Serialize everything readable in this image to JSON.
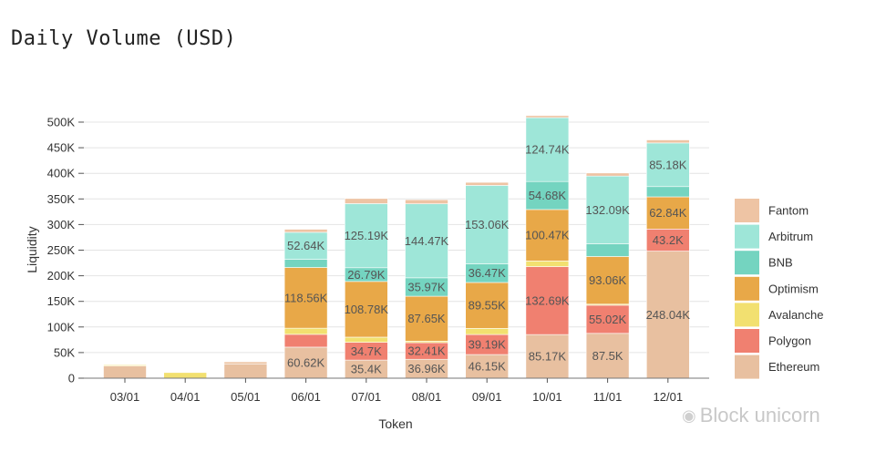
{
  "page": {
    "title": "Daily Volume (USD)"
  },
  "watermark": {
    "text": "Block unicorn"
  },
  "chart_data": {
    "type": "bar",
    "stacked": true,
    "title": "Daily Volume (USD)",
    "xlabel": "Token",
    "ylabel": "Liquidity",
    "ylim": [
      0,
      515000
    ],
    "yticks": [
      0,
      50000,
      100000,
      150000,
      200000,
      250000,
      300000,
      350000,
      400000,
      450000,
      500000
    ],
    "ytick_labels": [
      "0",
      "50K",
      "100K",
      "150K",
      "200K",
      "250K",
      "300K",
      "350K",
      "400K",
      "450K",
      "500K"
    ],
    "categories": [
      "03/01",
      "04/01",
      "05/01",
      "06/01",
      "07/01",
      "08/01",
      "09/01",
      "10/01",
      "11/01",
      "12/01"
    ],
    "legend_position": "right",
    "series": [
      {
        "name": "Ethereum",
        "color": "#e8c0a0",
        "values": [
          24000,
          0,
          28000,
          60620,
          35400,
          36960,
          46150,
          85170,
          87500,
          248040
        ],
        "labels": [
          "",
          "",
          "",
          "60.62K",
          "35.4K",
          "36.96K",
          "46.15K",
          "85.17K",
          "87.5K",
          "248.04K"
        ]
      },
      {
        "name": "Polygon",
        "color": "#f08070",
        "values": [
          0,
          0,
          0,
          25000,
          34700,
          32410,
          39190,
          132690,
          55020,
          43200
        ],
        "labels": [
          "",
          "",
          "",
          "",
          "34.7K",
          "32.41K",
          "39.19K",
          "132.69K",
          "55.02K",
          "43.2K"
        ]
      },
      {
        "name": "Avalanche",
        "color": "#f2e070",
        "values": [
          2000,
          11000,
          0,
          12000,
          10000,
          3000,
          12000,
          11000,
          2000,
          0
        ],
        "labels": [
          "",
          "",
          "",
          "",
          "",
          "",
          "",
          "",
          "",
          ""
        ]
      },
      {
        "name": "Optimism",
        "color": "#e8a848",
        "values": [
          0,
          0,
          0,
          118560,
          108780,
          87650,
          89550,
          100470,
          93060,
          62840
        ],
        "labels": [
          "",
          "",
          "",
          "118.56K",
          "108.78K",
          "87.65K",
          "89.55K",
          "100.47K",
          "93.06K",
          "62.84K"
        ]
      },
      {
        "name": "BNB",
        "color": "#74d4c0",
        "values": [
          0,
          0,
          0,
          16000,
          26790,
          35970,
          36470,
          54680,
          25000,
          20000
        ],
        "labels": [
          "",
          "",
          "",
          "",
          "26.79K",
          "35.97K",
          "36.47K",
          "54.68K",
          "",
          ""
        ]
      },
      {
        "name": "Arbitrum",
        "color": "#9ee6d8",
        "values": [
          0,
          0,
          0,
          52640,
          125190,
          144470,
          153060,
          124740,
          132090,
          85180
        ],
        "labels": [
          "",
          "",
          "",
          "52.64K",
          "125.19K",
          "144.47K",
          "153.06K",
          "124.74K",
          "132.09K",
          "85.18K"
        ]
      },
      {
        "name": "Fantom",
        "color": "#eec4a4",
        "values": [
          0,
          0,
          4000,
          6000,
          10000,
          8000,
          6000,
          4000,
          6000,
          6000
        ],
        "labels": [
          "",
          "",
          "",
          "",
          "",
          "",
          "",
          "",
          "",
          ""
        ]
      }
    ],
    "legend_order": [
      "Fantom",
      "Arbitrum",
      "BNB",
      "Optimism",
      "Avalanche",
      "Polygon",
      "Ethereum"
    ]
  }
}
